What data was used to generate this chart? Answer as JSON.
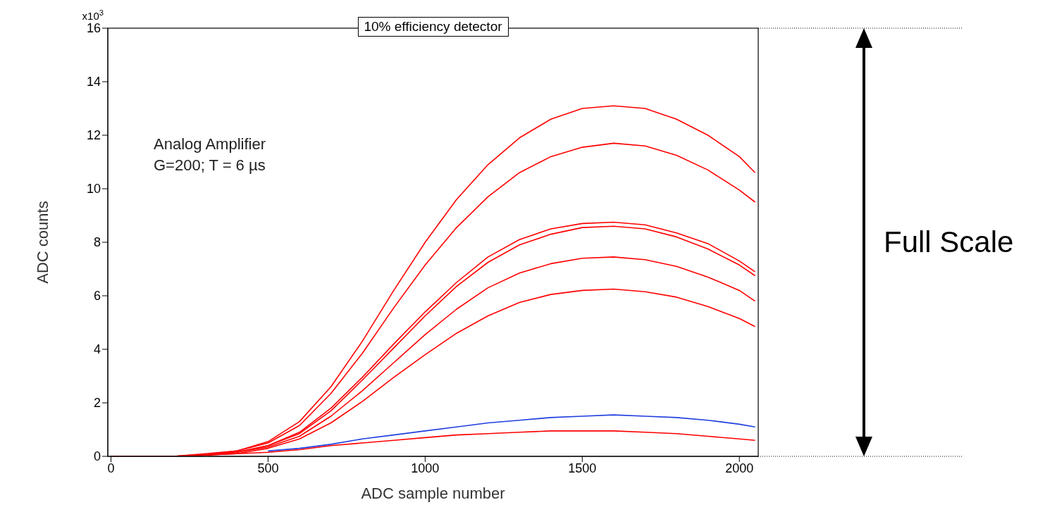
{
  "chart_data": {
    "type": "line",
    "title": "10% efficiency detector",
    "xlabel": "ADC sample number",
    "ylabel": "ADC counts",
    "annotations": [
      "x10$^{3}$",
      "Analog Amplifier",
      "G=200; T = 6 µs",
      "Full Scale"
    ],
    "x": [
      0,
      100,
      200,
      300,
      400,
      500,
      600,
      700,
      800,
      900,
      1000,
      1100,
      1200,
      1300,
      1400,
      1500,
      1600,
      1700,
      1800,
      1900,
      2000,
      2050
    ],
    "series": [
      {
        "color": "#ff0000",
        "values": [
          0,
          0,
          0,
          0.1,
          0.2,
          0.55,
          1.3,
          2.6,
          4.3,
          6.2,
          8,
          9.6,
          10.9,
          11.9,
          12.6,
          13,
          13.1,
          13,
          12.6,
          12,
          11.2,
          10.6
        ]
      },
      {
        "color": "#ff0000",
        "values": [
          0,
          0,
          0,
          0.05,
          0.2,
          0.5,
          1.15,
          2.35,
          3.85,
          5.55,
          7.15,
          8.55,
          9.7,
          10.6,
          11.2,
          11.55,
          11.7,
          11.6,
          11.25,
          10.7,
          9.95,
          9.5
        ]
      },
      {
        "color": "#ff0000",
        "values": [
          0,
          0,
          0,
          0.05,
          0.15,
          0.4,
          0.9,
          1.8,
          2.95,
          4.2,
          5.4,
          6.5,
          7.45,
          8.1,
          8.5,
          8.7,
          8.75,
          8.65,
          8.35,
          7.95,
          7.3,
          6.9
        ]
      },
      {
        "color": "#ff0000",
        "values": [
          null,
          null,
          null,
          0.05,
          0.15,
          0.4,
          0.85,
          1.7,
          2.85,
          4.05,
          5.25,
          6.35,
          7.25,
          7.9,
          8.3,
          8.55,
          8.6,
          8.5,
          8.2,
          7.75,
          7.15,
          6.75
        ]
      },
      {
        "color": "#ff0000",
        "values": [
          0,
          0,
          0,
          0.05,
          0.15,
          0.35,
          0.75,
          1.5,
          2.45,
          3.5,
          4.55,
          5.5,
          6.3,
          6.85,
          7.2,
          7.4,
          7.45,
          7.35,
          7.1,
          6.7,
          6.2,
          5.8
        ]
      },
      {
        "color": "#ff0000",
        "values": [
          0,
          0,
          0,
          0.05,
          0.1,
          0.3,
          0.65,
          1.25,
          2.05,
          2.95,
          3.8,
          4.6,
          5.25,
          5.75,
          6.05,
          6.2,
          6.25,
          6.15,
          5.95,
          5.6,
          5.15,
          4.85
        ]
      },
      {
        "color": "#1f3fdf",
        "values": [
          null,
          null,
          null,
          null,
          null,
          0.2,
          0.3,
          0.45,
          0.65,
          0.8,
          0.95,
          1.1,
          1.25,
          1.35,
          1.45,
          1.5,
          1.55,
          1.5,
          1.45,
          1.35,
          1.2,
          1.1
        ]
      },
      {
        "color": "#ff0000",
        "values": [
          0,
          0,
          0,
          0.05,
          0.1,
          0.15,
          0.25,
          0.4,
          0.5,
          0.6,
          0.7,
          0.8,
          0.85,
          0.9,
          0.95,
          0.95,
          0.95,
          0.9,
          0.85,
          0.75,
          0.65,
          0.6
        ]
      }
    ],
    "xlim": [
      -10,
      2060
    ],
    "xticks": [
      0,
      500,
      1000,
      1500,
      2000
    ],
    "ylim": [
      0,
      16
    ],
    "yticks": [
      0,
      2,
      4,
      6,
      8,
      10,
      12,
      14,
      16
    ],
    "grid": false,
    "legend": false,
    "marker": "none",
    "line_style": "solid"
  }
}
